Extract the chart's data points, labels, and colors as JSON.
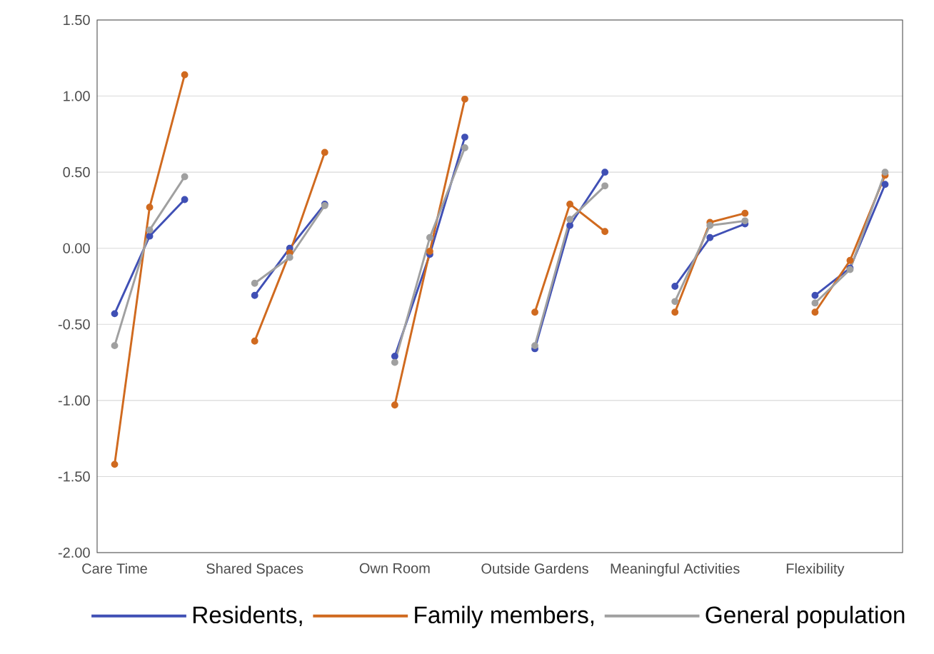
{
  "chart_data": {
    "type": "line",
    "categories": [
      "Care Time",
      null,
      null,
      null,
      "Shared Spaces",
      null,
      null,
      null,
      "Own Room",
      null,
      null,
      null,
      "Outside Gardens",
      null,
      null,
      null,
      "Meaningful Activities",
      null,
      null,
      null,
      "Flexibility",
      null,
      null
    ],
    "series": [
      {
        "name": "Residents,",
        "color": "#4050b5",
        "values": [
          -0.43,
          0.08,
          0.32,
          null,
          -0.31,
          0.0,
          0.29,
          null,
          -0.71,
          -0.04,
          0.73,
          null,
          -0.66,
          0.15,
          0.5,
          null,
          -0.25,
          0.07,
          0.16,
          null,
          -0.31,
          -0.13,
          0.42
        ]
      },
      {
        "name": "Family members,",
        "color": "#d06a1f",
        "values": [
          -1.42,
          0.27,
          1.14,
          null,
          -0.61,
          -0.03,
          0.63,
          null,
          -1.03,
          -0.02,
          0.98,
          null,
          -0.42,
          0.29,
          0.11,
          null,
          -0.42,
          0.17,
          0.23,
          null,
          -0.42,
          -0.08,
          0.48
        ]
      },
      {
        "name": "General population",
        "color": "#a0a0a0",
        "values": [
          -0.64,
          0.12,
          0.47,
          null,
          -0.23,
          -0.06,
          0.28,
          null,
          -0.75,
          0.07,
          0.66,
          null,
          -0.64,
          0.19,
          0.41,
          null,
          -0.35,
          0.15,
          0.18,
          null,
          -0.36,
          -0.14,
          0.5
        ]
      }
    ],
    "ylim": [
      -2.0,
      1.5
    ],
    "yticks": [
      {
        "value": -2.0,
        "label": "-2.00"
      },
      {
        "value": -1.5,
        "label": "-1.50"
      },
      {
        "value": -1.0,
        "label": "-1.00"
      },
      {
        "value": -0.5,
        "label": "-0.50"
      },
      {
        "value": 0.0,
        "label": "0.00"
      },
      {
        "value": 0.5,
        "label": "0.50"
      },
      {
        "value": 1.0,
        "label": "1.00"
      },
      {
        "value": 1.5,
        "label": "1.50"
      }
    ],
    "grid": "y",
    "legend": "bottom",
    "marker": "circle",
    "line_style": "solid"
  }
}
